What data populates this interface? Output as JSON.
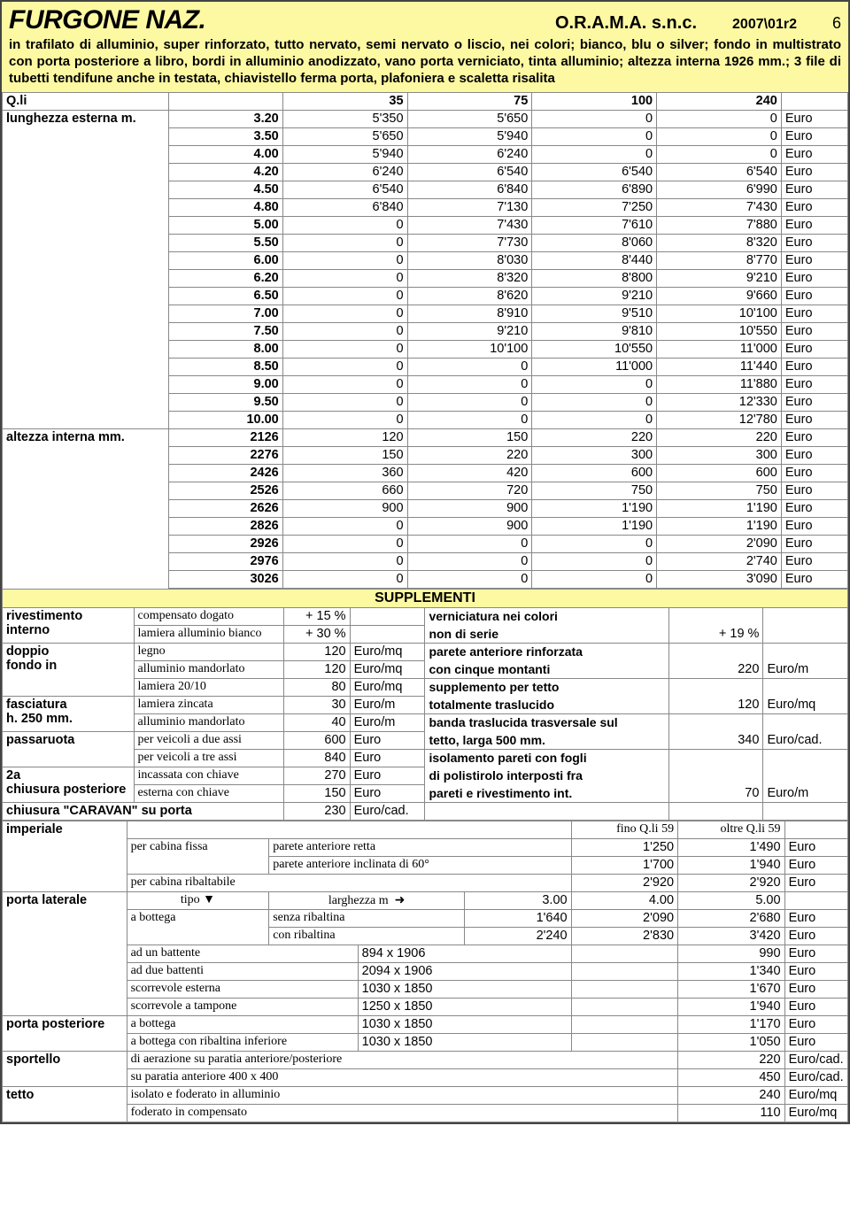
{
  "header": {
    "title": "FURGONE NAZ.",
    "company": "O.R.A.M.A. s.n.c.",
    "revision": "2007\\01r2",
    "page": "6",
    "description": "in trafilato di alluminio, super rinforzato, tutto nervato, semi nervato o liscio, nei colori; bianco, blu o silver; fondo in multistrato con porta posteriore a libro, bordi in alluminio anodizzato, vano porta verniciato, tinta alluminio; altezza interna 1926 mm.; 3 file di tubetti tendifune anche in testata, chiavistello ferma porta, plafoniera e scaletta risalita"
  },
  "main_table": {
    "qli_label": "Q.li",
    "columns": [
      "35",
      "75",
      "100",
      "240"
    ],
    "unit": "Euro",
    "sections": [
      {
        "label": "lunghezza esterna m.",
        "rows": [
          {
            "spec": "3.20",
            "v": [
              "5'350",
              "5'650",
              "0",
              "0"
            ]
          },
          {
            "spec": "3.50",
            "v": [
              "5'650",
              "5'940",
              "0",
              "0"
            ]
          },
          {
            "spec": "4.00",
            "v": [
              "5'940",
              "6'240",
              "0",
              "0"
            ]
          },
          {
            "spec": "4.20",
            "v": [
              "6'240",
              "6'540",
              "6'540",
              "6'540"
            ]
          },
          {
            "spec": "4.50",
            "v": [
              "6'540",
              "6'840",
              "6'890",
              "6'990"
            ]
          },
          {
            "spec": "4.80",
            "v": [
              "6'840",
              "7'130",
              "7'250",
              "7'430"
            ]
          },
          {
            "spec": "5.00",
            "v": [
              "0",
              "7'430",
              "7'610",
              "7'880"
            ]
          },
          {
            "spec": "5.50",
            "v": [
              "0",
              "7'730",
              "8'060",
              "8'320"
            ]
          },
          {
            "spec": "6.00",
            "v": [
              "0",
              "8'030",
              "8'440",
              "8'770"
            ]
          },
          {
            "spec": "6.20",
            "v": [
              "0",
              "8'320",
              "8'800",
              "9'210"
            ]
          },
          {
            "spec": "6.50",
            "v": [
              "0",
              "8'620",
              "9'210",
              "9'660"
            ]
          },
          {
            "spec": "7.00",
            "v": [
              "0",
              "8'910",
              "9'510",
              "10'100"
            ]
          },
          {
            "spec": "7.50",
            "v": [
              "0",
              "9'210",
              "9'810",
              "10'550"
            ]
          },
          {
            "spec": "8.00",
            "v": [
              "0",
              "10'100",
              "10'550",
              "11'000"
            ]
          },
          {
            "spec": "8.50",
            "v": [
              "0",
              "0",
              "11'000",
              "11'440"
            ]
          },
          {
            "spec": "9.00",
            "v": [
              "0",
              "0",
              "0",
              "11'880"
            ]
          },
          {
            "spec": "9.50",
            "v": [
              "0",
              "0",
              "0",
              "12'330"
            ]
          },
          {
            "spec": "10.00",
            "v": [
              "0",
              "0",
              "0",
              "12'780"
            ]
          }
        ]
      },
      {
        "label": "altezza interna mm.",
        "rows": [
          {
            "spec": "2126",
            "v": [
              "120",
              "150",
              "220",
              "220"
            ]
          },
          {
            "spec": "2276",
            "v": [
              "150",
              "220",
              "300",
              "300"
            ]
          },
          {
            "spec": "2426",
            "v": [
              "360",
              "420",
              "600",
              "600"
            ]
          },
          {
            "spec": "2526",
            "v": [
              "660",
              "720",
              "750",
              "750"
            ]
          },
          {
            "spec": "2626",
            "v": [
              "900",
              "900",
              "1'190",
              "1'190"
            ]
          },
          {
            "spec": "2826",
            "v": [
              "0",
              "900",
              "1'190",
              "1'190"
            ]
          },
          {
            "spec": "2926",
            "v": [
              "0",
              "0",
              "0",
              "2'090"
            ]
          },
          {
            "spec": "2976",
            "v": [
              "0",
              "0",
              "0",
              "2'740"
            ]
          },
          {
            "spec": "3026",
            "v": [
              "0",
              "0",
              "0",
              "3'090"
            ]
          }
        ]
      }
    ]
  },
  "supplementi": {
    "title": "SUPPLEMENTI",
    "left": [
      {
        "group": "rivestimento interno",
        "rows": [
          {
            "desc": "compensato dogato",
            "val": "+ 15 %",
            "unit": ""
          },
          {
            "desc": "lamiera alluminio bianco",
            "val": "+ 30 %",
            "unit": ""
          }
        ]
      },
      {
        "group": "doppio fondo in",
        "rows": [
          {
            "desc": "legno",
            "val": "120",
            "unit": "Euro/mq"
          },
          {
            "desc": "alluminio mandorlato",
            "val": "120",
            "unit": "Euro/mq"
          },
          {
            "desc": "lamiera 20/10",
            "val": "80",
            "unit": "Euro/mq"
          }
        ]
      },
      {
        "group": "fasciatura h. 250 mm.",
        "rows": [
          {
            "desc": "lamiera zincata",
            "val": "30",
            "unit": "Euro/m"
          },
          {
            "desc": "alluminio mandorlato",
            "val": "40",
            "unit": "Euro/m"
          }
        ]
      },
      {
        "group": "passaruota",
        "rows": [
          {
            "desc": "per veicoli a due assi",
            "val": "600",
            "unit": "Euro"
          },
          {
            "desc": "per veicoli a tre assi",
            "val": "840",
            "unit": "Euro"
          }
        ]
      },
      {
        "group": "2a chiusura posteriore",
        "rows": [
          {
            "desc": "incassata con chiave",
            "val": "270",
            "unit": "Euro"
          },
          {
            "desc": "esterna con chiave",
            "val": "150",
            "unit": "Euro"
          }
        ]
      },
      {
        "group": "chiusura \"CARAVAN\" su porta",
        "rows": [
          {
            "desc": "",
            "val": "230",
            "unit": "Euro/cad."
          }
        ]
      }
    ],
    "right": [
      {
        "desc": "verniciatura nei colori non di serie",
        "val": "+ 19 %",
        "unit": "",
        "lines": 2
      },
      {
        "desc": "parete anteriore rinforzata con cinque montanti",
        "val": "220",
        "unit": "Euro/m",
        "lines": 2
      },
      {
        "desc": "supplemento per tetto totalmente traslucido",
        "val": "120",
        "unit": "Euro/mq",
        "lines": 2
      },
      {
        "desc": "banda traslucida trasversale sul tetto, larga 500 mm.",
        "val": "340",
        "unit": "Euro/cad.",
        "lines": 2
      },
      {
        "desc": "isolamento pareti con fogli di polistirolo interposti fra pareti e rivestimento int.",
        "val": "70",
        "unit": "Euro/m",
        "lines": 3
      }
    ]
  },
  "imperiale": {
    "label": "imperiale",
    "header": [
      "fino Q.li 59",
      "oltre Q.li 59"
    ],
    "rows": [
      {
        "a": "per cabina fissa",
        "b": "parete anteriore retta",
        "v": [
          "1'250",
          "1'490"
        ],
        "u": "Euro"
      },
      {
        "a": "",
        "b": "parete anteriore inclinata di 60°",
        "v": [
          "1'700",
          "1'940"
        ],
        "u": "Euro"
      },
      {
        "a": "per cabina ribaltabile",
        "b": "",
        "v": [
          "2'920",
          "2'920"
        ],
        "u": "Euro"
      }
    ]
  },
  "porta_laterale": {
    "label": "porta laterale",
    "tipo": "tipo",
    "larg": "larghezza m",
    "cols": [
      "3.00",
      "4.00",
      "5.00"
    ],
    "rows": [
      {
        "a": "a bottega",
        "b": "senza ribaltina",
        "v": [
          "1'640",
          "2'090",
          "2'680"
        ],
        "u": "Euro"
      },
      {
        "a": "",
        "b": "con ribaltina",
        "v": [
          "2'240",
          "2'830",
          "3'420"
        ],
        "u": "Euro"
      },
      {
        "a": "ad un battente",
        "dim": "894 x 1906",
        "p": "990",
        "u": "Euro"
      },
      {
        "a": "ad due battenti",
        "dim": "2094 x 1906",
        "p": "1'340",
        "u": "Euro"
      },
      {
        "a": "scorrevole esterna",
        "dim": "1030 x 1850",
        "p": "1'670",
        "u": "Euro"
      },
      {
        "a": "scorrevole  a tampone",
        "dim": "1250 x 1850",
        "p": "1'940",
        "u": "Euro"
      }
    ]
  },
  "porta_posteriore": {
    "label": "porta posteriore",
    "rows": [
      {
        "a": "a bottega",
        "dim": "1030 x 1850",
        "p": "1'170",
        "u": "Euro"
      },
      {
        "a": "a bottega con ribaltina inferiore",
        "dim": "1030 x 1850",
        "p": "1'050",
        "u": "Euro"
      }
    ]
  },
  "sportello": {
    "label": "sportello",
    "rows": [
      {
        "a": "di aerazione su paratia anteriore/posteriore",
        "p": "220",
        "u": "Euro/cad."
      },
      {
        "a": "su paratia anteriore 400 x 400",
        "p": "450",
        "u": "Euro/cad."
      }
    ]
  },
  "tetto": {
    "label": "tetto",
    "rows": [
      {
        "a": "isolato e foderato in alluminio",
        "p": "240",
        "u": "Euro/mq"
      },
      {
        "a": "foderato in compensato",
        "p": "110",
        "u": "Euro/mq"
      }
    ]
  },
  "colors": {
    "header_bg": "#fdf9a3",
    "border": "#888888",
    "text": "#000000"
  }
}
